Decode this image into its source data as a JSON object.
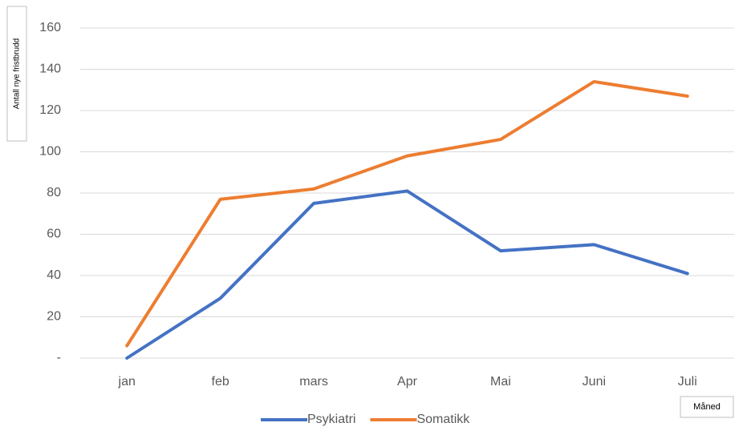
{
  "chart_data": {
    "type": "line",
    "y_label": "Antall nye fristbrudd",
    "x_label": "Måned",
    "categories": [
      "jan",
      "feb",
      "mars",
      "Apr",
      "Mai",
      "Juni",
      "Juli"
    ],
    "series": [
      {
        "name": "Psykiatri",
        "color": "#4472c4",
        "values": [
          0,
          29,
          75,
          81,
          52,
          55,
          41
        ]
      },
      {
        "name": "Somatikk",
        "color": "#ed7d31",
        "values": [
          6,
          77,
          82,
          98,
          106,
          134,
          127
        ]
      }
    ],
    "ylim": [
      0,
      160
    ],
    "yticks": [
      {
        "value": 0,
        "label": "-"
      },
      20,
      40,
      60,
      80,
      100,
      120,
      140,
      160
    ],
    "grid": true,
    "legend": "bottom"
  }
}
